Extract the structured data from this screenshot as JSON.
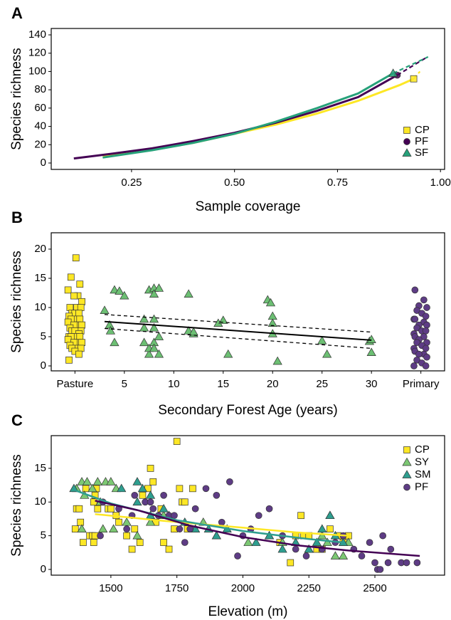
{
  "chart_data": [
    {
      "type": "line",
      "panel_label": "A",
      "x_label": "Sample coverage",
      "y_label": "Species richness",
      "xlim": [
        0.055,
        1.01
      ],
      "ylim": [
        -7,
        147
      ],
      "xticks": [
        {
          "value": 0.25,
          "label": "0.25"
        },
        {
          "value": 0.5,
          "label": "0.50"
        },
        {
          "value": 0.75,
          "label": "0.75"
        },
        {
          "value": 1.0,
          "label": "1.00"
        }
      ],
      "yticks": [
        0,
        20,
        40,
        60,
        80,
        100,
        120,
        140
      ],
      "legend": "lower right",
      "series": [
        {
          "name": "CP",
          "color": "#FDE725",
          "marker": "square",
          "x": [
            0.18,
            0.3,
            0.4,
            0.5,
            0.6,
            0.7,
            0.8,
            0.9,
            0.95
          ],
          "values": [
            7,
            15,
            22,
            32,
            42,
            54,
            68,
            85,
            100
          ],
          "observed": {
            "x": 0.935,
            "y": 92
          }
        },
        {
          "name": "PF",
          "color": "#440154",
          "marker": "circle",
          "x": [
            0.11,
            0.2,
            0.3,
            0.4,
            0.5,
            0.6,
            0.7,
            0.8,
            0.965
          ],
          "values": [
            5,
            10,
            16,
            24,
            33,
            44,
            57,
            72,
            115
          ],
          "observed": {
            "x": 0.895,
            "y": 96
          }
        },
        {
          "name": "SF",
          "color": "#26A17A",
          "marker": "triangle",
          "x": [
            0.18,
            0.3,
            0.4,
            0.5,
            0.6,
            0.7,
            0.8,
            0.97
          ],
          "values": [
            6,
            14,
            22,
            32,
            45,
            60,
            76,
            116
          ],
          "observed": {
            "x": 0.885,
            "y": 98
          }
        }
      ]
    },
    {
      "type": "scatter",
      "panel_label": "B",
      "x_label": "Secondary Forest Age (years)",
      "y_label": "Species richness",
      "xlim": [
        -2.4,
        37.4
      ],
      "ylim": [
        -0.85,
        22.8
      ],
      "xticks": [
        {
          "value": 0,
          "label": "Pasture"
        },
        5,
        10,
        15,
        20,
        25,
        30,
        {
          "value": 35,
          "label": "Primary"
        }
      ],
      "yticks": [
        0,
        5,
        10,
        15,
        20
      ],
      "series": [
        {
          "color": "#FDE725",
          "marker": "square",
          "x": [
            0.1,
            -0.4,
            0.5,
            -0.7,
            0.3,
            -0.1,
            0.7,
            -0.5,
            0.2,
            0.6,
            -0.3,
            0.0,
            0.4,
            -0.6,
            0.1,
            -0.4,
            0.5,
            -0.7,
            0.3,
            -0.1,
            0.7,
            -0.5,
            0.2,
            0.6,
            -0.3,
            0.0,
            0.4,
            -0.6,
            0.1,
            -0.4,
            0.5,
            -0.7,
            0.3,
            -0.1,
            0.7,
            -0.5,
            0.2,
            0.6,
            -0.3,
            0.0,
            0.4,
            -0.6
          ],
          "values": [
            18.5,
            15.2,
            14,
            13,
            12,
            12,
            11,
            10,
            10,
            10,
            9,
            9,
            9,
            8.5,
            8,
            8,
            8,
            7.5,
            7,
            7,
            7,
            6.5,
            6,
            6,
            6,
            6,
            5.5,
            5,
            5,
            5,
            5,
            4.5,
            4,
            4,
            4,
            3.5,
            3,
            3,
            3,
            2.5,
            2,
            1
          ]
        },
        {
          "color": "#6CBF73",
          "marker": "triangle",
          "x": [
            3,
            3.5,
            3.6,
            4,
            4,
            4.5,
            5,
            7,
            7,
            7,
            7.5,
            7.5,
            7.5,
            8,
            8,
            8,
            8,
            8,
            8,
            8.5,
            8.5,
            8.5,
            11.5,
            11.5,
            12,
            12,
            14.5,
            15,
            15.5,
            19.5,
            19.8,
            20,
            20,
            20,
            20.5,
            25,
            25.5,
            29.8,
            30,
            30
          ],
          "values": [
            9.5,
            7,
            6,
            4,
            13,
            12.8,
            12,
            8,
            6.5,
            4,
            2,
            3,
            13,
            13.3,
            12.3,
            8,
            6.5,
            4,
            3,
            2,
            13.3,
            5,
            12.3,
            6,
            5.5,
            5.8,
            7.3,
            7.8,
            2,
            11.3,
            10.8,
            8.5,
            7.3,
            5.5,
            0.8,
            4.3,
            2,
            4.2,
            4.5,
            2.3
          ]
        },
        {
          "color": "#5E3C85",
          "marker": "circle",
          "x": [
            34.4,
            35.3,
            34.8,
            35.6,
            34.6,
            35.1,
            35.5,
            34.3,
            34.4,
            35.3,
            34.8,
            35.6,
            34.6,
            35.1,
            35.5,
            34.3,
            34.4,
            35.3,
            34.8,
            35.6,
            34.6,
            35.1,
            35.5,
            34.3,
            34.4,
            35.3,
            34.8,
            35.6,
            34.6,
            35.1,
            35.5,
            34.3
          ],
          "values": [
            13,
            11.3,
            10.3,
            10,
            9.5,
            9,
            8.5,
            8,
            8,
            7.5,
            7,
            7,
            6.5,
            6,
            6,
            5.5,
            5,
            5,
            4.5,
            4,
            4,
            3.5,
            3,
            3,
            2.5,
            2,
            2,
            1.5,
            1,
            0.5,
            0,
            0
          ]
        }
      ],
      "trend": {
        "x": [
          3,
          30
        ],
        "values": [
          7.6,
          4.4
        ],
        "upper": [
          8.8,
          5.8
        ],
        "lower": [
          6.4,
          3.0
        ]
      }
    },
    {
      "type": "scatter",
      "panel_label": "C",
      "x_label": "Elevation (m)",
      "y_label": "Species richness",
      "xlim": [
        1274,
        2764
      ],
      "ylim": [
        -0.85,
        19.85
      ],
      "xticks": [
        1500,
        1750,
        2000,
        2250,
        2500
      ],
      "yticks": [
        0,
        5,
        10,
        15
      ],
      "legend": "upper right",
      "series": [
        {
          "name": "CP",
          "color": "#FDE725",
          "marker": "square",
          "x": [
            1365,
            1370,
            1380,
            1385,
            1395,
            1405,
            1420,
            1430,
            1435,
            1440,
            1445,
            1450,
            1435,
            1440,
            1490,
            1500,
            1520,
            1530,
            1560,
            1580,
            1590,
            1610,
            1620,
            1640,
            1650,
            1660,
            1670,
            1690,
            1700,
            1720,
            1740,
            1750,
            1760,
            1770,
            1780,
            1790,
            1810,
            2140,
            2180,
            2200,
            2220,
            2230,
            2250,
            2280,
            2300,
            2330,
            2360,
            2380,
            2400
          ],
          "values": [
            6,
            9,
            9,
            7,
            4,
            12,
            5,
            5,
            10,
            11,
            12,
            9,
            4,
            5,
            9,
            9,
            8,
            7,
            5,
            3,
            6,
            4,
            11,
            12,
            15,
            13,
            7,
            9,
            4,
            3,
            6,
            19,
            12,
            10,
            10,
            6,
            12,
            4,
            1,
            5,
            8,
            5,
            5,
            3,
            3,
            6,
            5,
            4,
            5
          ],
          "fit": {
            "x": [
              1440,
              1700,
              2000,
              2200,
              2400
            ],
            "values": [
              8.2,
              7.2,
              6.2,
              5.5,
              5
            ]
          }
        },
        {
          "name": "SY",
          "color": "#7CC873",
          "marker": "triangle",
          "x": [
            1370,
            1390,
            1400,
            1410,
            1430,
            1450,
            1460,
            1480,
            1500,
            1520,
            1390,
            1470,
            1510,
            1560,
            1600,
            1650,
            1700,
            1850,
            1900,
            2020,
            2100,
            2150,
            2250,
            2300,
            2320,
            2330,
            2350,
            2380,
            2400
          ],
          "values": [
            12,
            13,
            11,
            13,
            12,
            13,
            10,
            13,
            13,
            12,
            6,
            6,
            6,
            7,
            5,
            7,
            8,
            7,
            5,
            4,
            5,
            4,
            3,
            5,
            4,
            8,
            2,
            2,
            4
          ]
        },
        {
          "name": "SM",
          "color": "#2E9E8F",
          "marker": "triangle",
          "x": [
            1360,
            1540,
            1600,
            1620,
            1650,
            1600,
            1650,
            1700,
            1720,
            1780,
            1820,
            1870,
            1900,
            1940,
            2050,
            2100,
            2200,
            2250,
            2280,
            2300,
            2330,
            2350,
            2380,
            2150
          ],
          "values": [
            12,
            12,
            13,
            12,
            11,
            10,
            8,
            9,
            8,
            7,
            6,
            6,
            5,
            6,
            4,
            5,
            4,
            3,
            4,
            6,
            8,
            5,
            4,
            3
          ],
          "fit": {
            "x": [
              1360,
              1500,
              1750,
              2000,
              2250,
              2380
            ],
            "values": [
              11.8,
              9.8,
              7.3,
              5.7,
              4.5,
              4
            ]
          }
        },
        {
          "name": "PF",
          "color": "#5E3C85",
          "line_color": "#440154",
          "marker": "circle",
          "x": [
            1460,
            1470,
            1530,
            1560,
            1580,
            1590,
            1630,
            1650,
            1660,
            1680,
            1700,
            1720,
            1740,
            1760,
            1780,
            1800,
            1820,
            1860,
            1900,
            1920,
            1950,
            1980,
            2000,
            2030,
            2060,
            2100,
            2150,
            2200,
            2240,
            2300,
            2350,
            2380,
            2420,
            2450,
            2480,
            2500,
            2510,
            2520,
            2530,
            2550,
            2560,
            2600,
            2620,
            2660
          ],
          "values": [
            5,
            10,
            9,
            6,
            8,
            11,
            10,
            10,
            9,
            8,
            11,
            8,
            8,
            6,
            4,
            6,
            9,
            12,
            11,
            7,
            13,
            2,
            5,
            6,
            8,
            9,
            5,
            3,
            2,
            3,
            4,
            5,
            3,
            2,
            4,
            1,
            0,
            0,
            5,
            1,
            3,
            1,
            1,
            1
          ],
          "fit": {
            "x": [
              1440,
              1600,
              1800,
              2000,
              2200,
              2400,
              2670
            ],
            "values": [
              10.2,
              8.8,
              6.5,
              4.8,
              3.6,
              2.8,
              2
            ]
          }
        }
      ]
    }
  ]
}
